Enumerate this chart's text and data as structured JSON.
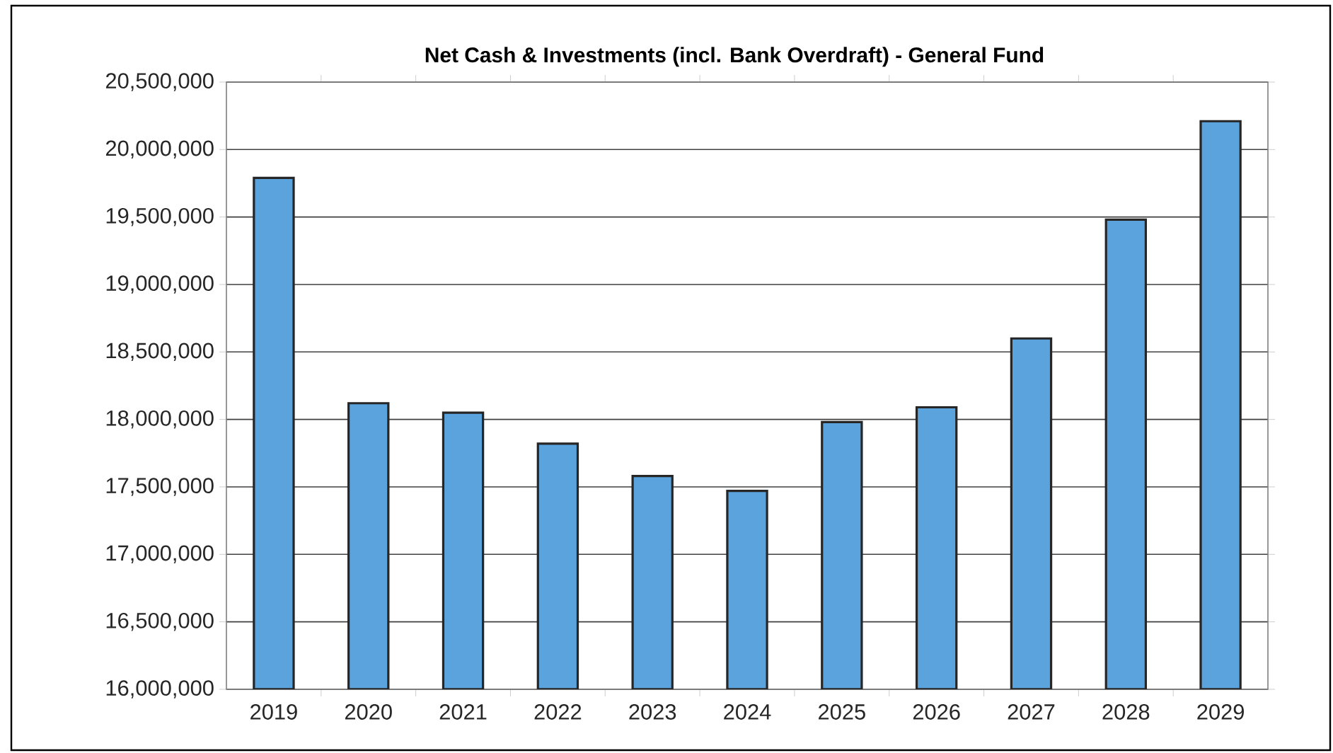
{
  "chart_data": {
    "type": "bar",
    "title": "Net Cash & Investments (incl. Bank Overdraft) - General Fund",
    "categories": [
      "2019",
      "2020",
      "2021",
      "2022",
      "2023",
      "2024",
      "2025",
      "2026",
      "2027",
      "2028",
      "2029"
    ],
    "values": [
      19790000,
      18120000,
      18050000,
      17820000,
      17580000,
      17470000,
      17980000,
      18090000,
      18600000,
      19480000,
      20210000
    ],
    "color": "#5ba3dc",
    "ylim": [
      16000000,
      20500000
    ],
    "yticks": [
      {
        "value": 16000000,
        "label": "16,000,000"
      },
      {
        "value": 16500000,
        "label": "16,500,000"
      },
      {
        "value": 17000000,
        "label": "17,000,000"
      },
      {
        "value": 17500000,
        "label": "17,500,000"
      },
      {
        "value": 18000000,
        "label": "18,000,000"
      },
      {
        "value": 18500000,
        "label": "18,500,000"
      },
      {
        "value": 19000000,
        "label": "19,000,000"
      },
      {
        "value": 19500000,
        "label": "19,500,000"
      },
      {
        "value": 20000000,
        "label": "20,000,000"
      },
      {
        "value": 20500000,
        "label": "20,500,000"
      }
    ],
    "grid": "y"
  }
}
